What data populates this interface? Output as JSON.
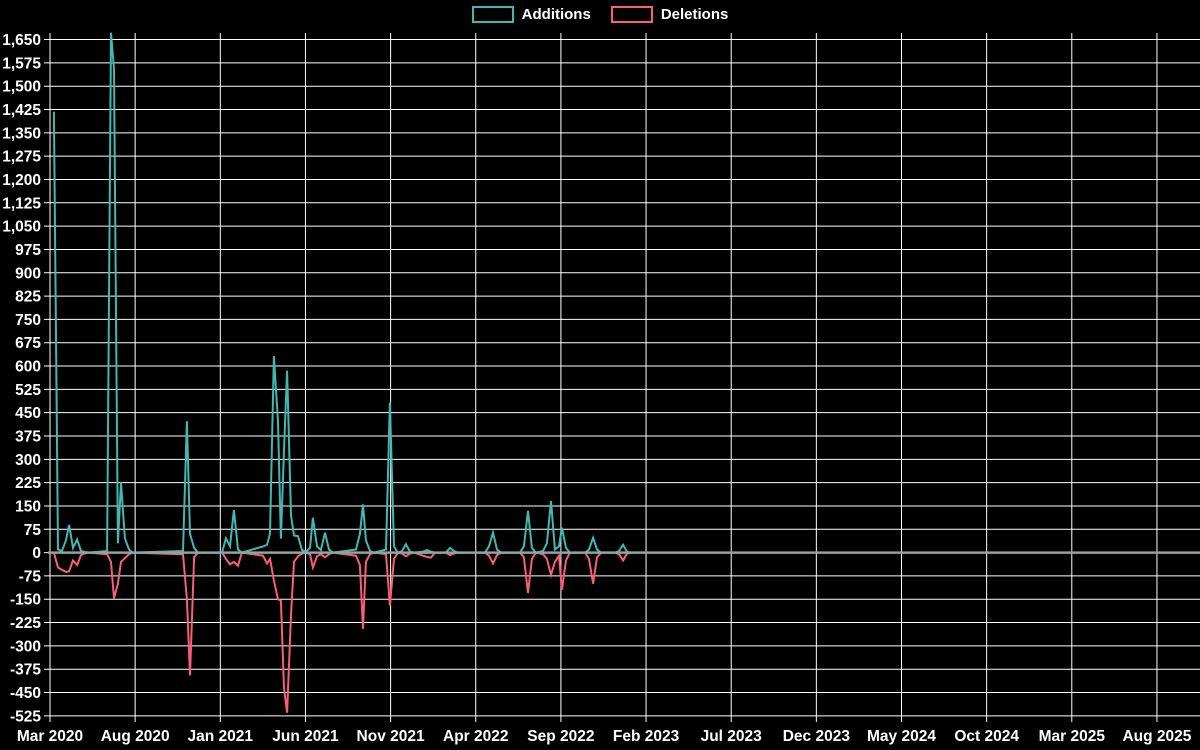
{
  "legend": {
    "items": [
      {
        "label": "Additions",
        "color": "#43b8b1"
      },
      {
        "label": "Deletions",
        "color": "#f85f78"
      }
    ]
  },
  "colors": {
    "background": "#000000",
    "grid": "#ffffff",
    "zero_line": "#8fa3a2",
    "text": "#ffffff",
    "additions": "#43b8b1",
    "deletions": "#f85f78"
  },
  "chart_data": {
    "type": "line",
    "title": "",
    "xlabel": "",
    "ylabel": "",
    "grid": true,
    "legend_position": "top-center",
    "x_axis": {
      "unit": "months since Mar 2020",
      "tick_every_months": 5,
      "tick_labels": [
        "Mar 2020",
        "Aug 2020",
        "Jan 2021",
        "Jun 2021",
        "Nov 2021",
        "Apr 2022",
        "Sep 2022",
        "Feb 2023",
        "Jul 2023",
        "Dec 2023",
        "May 2024",
        "Oct 2024",
        "Mar 2025",
        "Aug 2025"
      ]
    },
    "y_axis": {
      "min": -525,
      "max": 1650,
      "step": 75,
      "tick_labels": [
        "1,650",
        "1,575",
        "1,500",
        "1,425",
        "1,350",
        "1,275",
        "1,200",
        "1,125",
        "1,050",
        "975",
        "900",
        "825",
        "750",
        "675",
        "600",
        "525",
        "450",
        "375",
        "300",
        "225",
        "150",
        "75",
        "0",
        "-75",
        "-150",
        "-225",
        "-300",
        "-375",
        "-450",
        "-525"
      ]
    },
    "zero_line": true,
    "series": [
      {
        "name": "Additions",
        "color": "#43b8b1",
        "points": [
          [
            0.23,
            1418
          ],
          [
            0.47,
            10
          ],
          [
            0.7,
            5
          ],
          [
            0.94,
            40
          ],
          [
            1.12,
            89
          ],
          [
            1.35,
            15
          ],
          [
            1.59,
            42
          ],
          [
            1.82,
            5
          ],
          [
            2.06,
            2
          ],
          [
            2.29,
            0
          ],
          [
            3.35,
            5
          ],
          [
            3.58,
            1672
          ],
          [
            3.76,
            1555
          ],
          [
            3.99,
            30
          ],
          [
            4.17,
            225
          ],
          [
            4.4,
            46
          ],
          [
            4.64,
            10
          ],
          [
            4.87,
            0
          ],
          [
            7.81,
            5
          ],
          [
            8.04,
            423
          ],
          [
            8.22,
            60
          ],
          [
            8.46,
            15
          ],
          [
            8.69,
            0
          ],
          [
            10.1,
            0
          ],
          [
            10.33,
            46
          ],
          [
            10.57,
            20
          ],
          [
            10.8,
            137
          ],
          [
            11.04,
            10
          ],
          [
            11.27,
            0
          ],
          [
            12.51,
            20
          ],
          [
            12.74,
            25
          ],
          [
            12.92,
            60
          ],
          [
            13.15,
            632
          ],
          [
            13.39,
            420
          ],
          [
            13.56,
            45
          ],
          [
            13.74,
            330
          ],
          [
            13.92,
            585
          ],
          [
            14.15,
            120
          ],
          [
            14.33,
            55
          ],
          [
            14.56,
            53
          ],
          [
            14.8,
            8
          ],
          [
            15.03,
            3
          ],
          [
            15.27,
            15
          ],
          [
            15.44,
            112
          ],
          [
            15.68,
            20
          ],
          [
            15.91,
            8
          ],
          [
            16.15,
            64
          ],
          [
            16.38,
            10
          ],
          [
            16.62,
            0
          ],
          [
            17.97,
            10
          ],
          [
            18.2,
            60
          ],
          [
            18.38,
            155
          ],
          [
            18.55,
            40
          ],
          [
            18.79,
            5
          ],
          [
            19.02,
            0
          ],
          [
            19.73,
            10
          ],
          [
            19.96,
            482
          ],
          [
            20.2,
            20
          ],
          [
            20.43,
            0
          ],
          [
            20.67,
            5
          ],
          [
            20.9,
            27
          ],
          [
            21.14,
            3
          ],
          [
            21.37,
            0
          ],
          [
            21.9,
            3
          ],
          [
            22.14,
            8
          ],
          [
            22.37,
            3
          ],
          [
            22.61,
            0
          ],
          [
            23.25,
            0
          ],
          [
            23.49,
            15
          ],
          [
            23.72,
            5
          ],
          [
            23.96,
            0
          ],
          [
            25.54,
            0
          ],
          [
            25.78,
            20
          ],
          [
            26.01,
            64
          ],
          [
            26.25,
            10
          ],
          [
            26.48,
            0
          ],
          [
            27.6,
            0
          ],
          [
            27.83,
            20
          ],
          [
            28.07,
            134
          ],
          [
            28.3,
            15
          ],
          [
            28.54,
            0
          ],
          [
            28.95,
            5
          ],
          [
            29.18,
            30
          ],
          [
            29.42,
            166
          ],
          [
            29.65,
            10
          ],
          [
            29.89,
            20
          ],
          [
            30.06,
            80
          ],
          [
            30.3,
            15
          ],
          [
            30.53,
            0
          ],
          [
            31.42,
            0
          ],
          [
            31.65,
            10
          ],
          [
            31.89,
            48
          ],
          [
            32.12,
            10
          ],
          [
            32.36,
            0
          ],
          [
            33.18,
            0
          ],
          [
            33.41,
            5
          ],
          [
            33.65,
            25
          ],
          [
            33.88,
            3
          ],
          [
            34.12,
            0
          ]
        ]
      },
      {
        "name": "Deletions",
        "color": "#f85f78",
        "points": [
          [
            0.23,
            0
          ],
          [
            0.47,
            -48
          ],
          [
            0.7,
            -55
          ],
          [
            0.94,
            -62
          ],
          [
            1.12,
            -60
          ],
          [
            1.35,
            -25
          ],
          [
            1.59,
            -40
          ],
          [
            1.82,
            -8
          ],
          [
            2.06,
            -2
          ],
          [
            2.29,
            0
          ],
          [
            3.35,
            -5
          ],
          [
            3.58,
            -30
          ],
          [
            3.76,
            -147
          ],
          [
            3.99,
            -100
          ],
          [
            4.17,
            -30
          ],
          [
            4.4,
            -18
          ],
          [
            4.64,
            -5
          ],
          [
            4.87,
            0
          ],
          [
            7.81,
            -5
          ],
          [
            8.04,
            -150
          ],
          [
            8.22,
            -395
          ],
          [
            8.46,
            -15
          ],
          [
            8.69,
            0
          ],
          [
            10.1,
            0
          ],
          [
            10.33,
            -20
          ],
          [
            10.57,
            -38
          ],
          [
            10.8,
            -30
          ],
          [
            11.04,
            -42
          ],
          [
            11.27,
            0
          ],
          [
            12.51,
            -10
          ],
          [
            12.74,
            -35
          ],
          [
            12.92,
            -20
          ],
          [
            13.15,
            -90
          ],
          [
            13.39,
            -150
          ],
          [
            13.56,
            -155
          ],
          [
            13.74,
            -435
          ],
          [
            13.92,
            -515
          ],
          [
            14.15,
            -200
          ],
          [
            14.33,
            -30
          ],
          [
            14.56,
            -12
          ],
          [
            14.8,
            -3
          ],
          [
            15.03,
            0
          ],
          [
            15.27,
            -5
          ],
          [
            15.44,
            -48
          ],
          [
            15.68,
            -12
          ],
          [
            15.91,
            -5
          ],
          [
            16.15,
            -15
          ],
          [
            16.38,
            -5
          ],
          [
            16.62,
            0
          ],
          [
            17.97,
            -10
          ],
          [
            18.2,
            -40
          ],
          [
            18.38,
            -245
          ],
          [
            18.55,
            -30
          ],
          [
            18.79,
            -5
          ],
          [
            19.02,
            0
          ],
          [
            19.73,
            -5
          ],
          [
            19.96,
            -170
          ],
          [
            20.2,
            -20
          ],
          [
            20.43,
            0
          ],
          [
            20.67,
            -3
          ],
          [
            20.9,
            -12
          ],
          [
            21.14,
            -3
          ],
          [
            21.37,
            0
          ],
          [
            21.9,
            -10
          ],
          [
            22.14,
            -14
          ],
          [
            22.37,
            -16
          ],
          [
            22.61,
            0
          ],
          [
            23.25,
            0
          ],
          [
            23.49,
            -8
          ],
          [
            23.72,
            -3
          ],
          [
            23.96,
            0
          ],
          [
            25.54,
            0
          ],
          [
            25.78,
            -10
          ],
          [
            26.01,
            -35
          ],
          [
            26.25,
            -8
          ],
          [
            26.48,
            0
          ],
          [
            27.6,
            0
          ],
          [
            27.83,
            -15
          ],
          [
            28.07,
            -130
          ],
          [
            28.3,
            -20
          ],
          [
            28.54,
            0
          ],
          [
            28.95,
            -5
          ],
          [
            29.18,
            -20
          ],
          [
            29.42,
            -72
          ],
          [
            29.65,
            -30
          ],
          [
            29.89,
            -10
          ],
          [
            30.06,
            -120
          ],
          [
            30.3,
            -25
          ],
          [
            30.53,
            0
          ],
          [
            31.42,
            0
          ],
          [
            31.65,
            -20
          ],
          [
            31.89,
            -100
          ],
          [
            32.12,
            -15
          ],
          [
            32.36,
            0
          ],
          [
            33.18,
            0
          ],
          [
            33.41,
            -5
          ],
          [
            33.65,
            -25
          ],
          [
            33.88,
            -3
          ],
          [
            34.12,
            0
          ]
        ]
      }
    ]
  }
}
